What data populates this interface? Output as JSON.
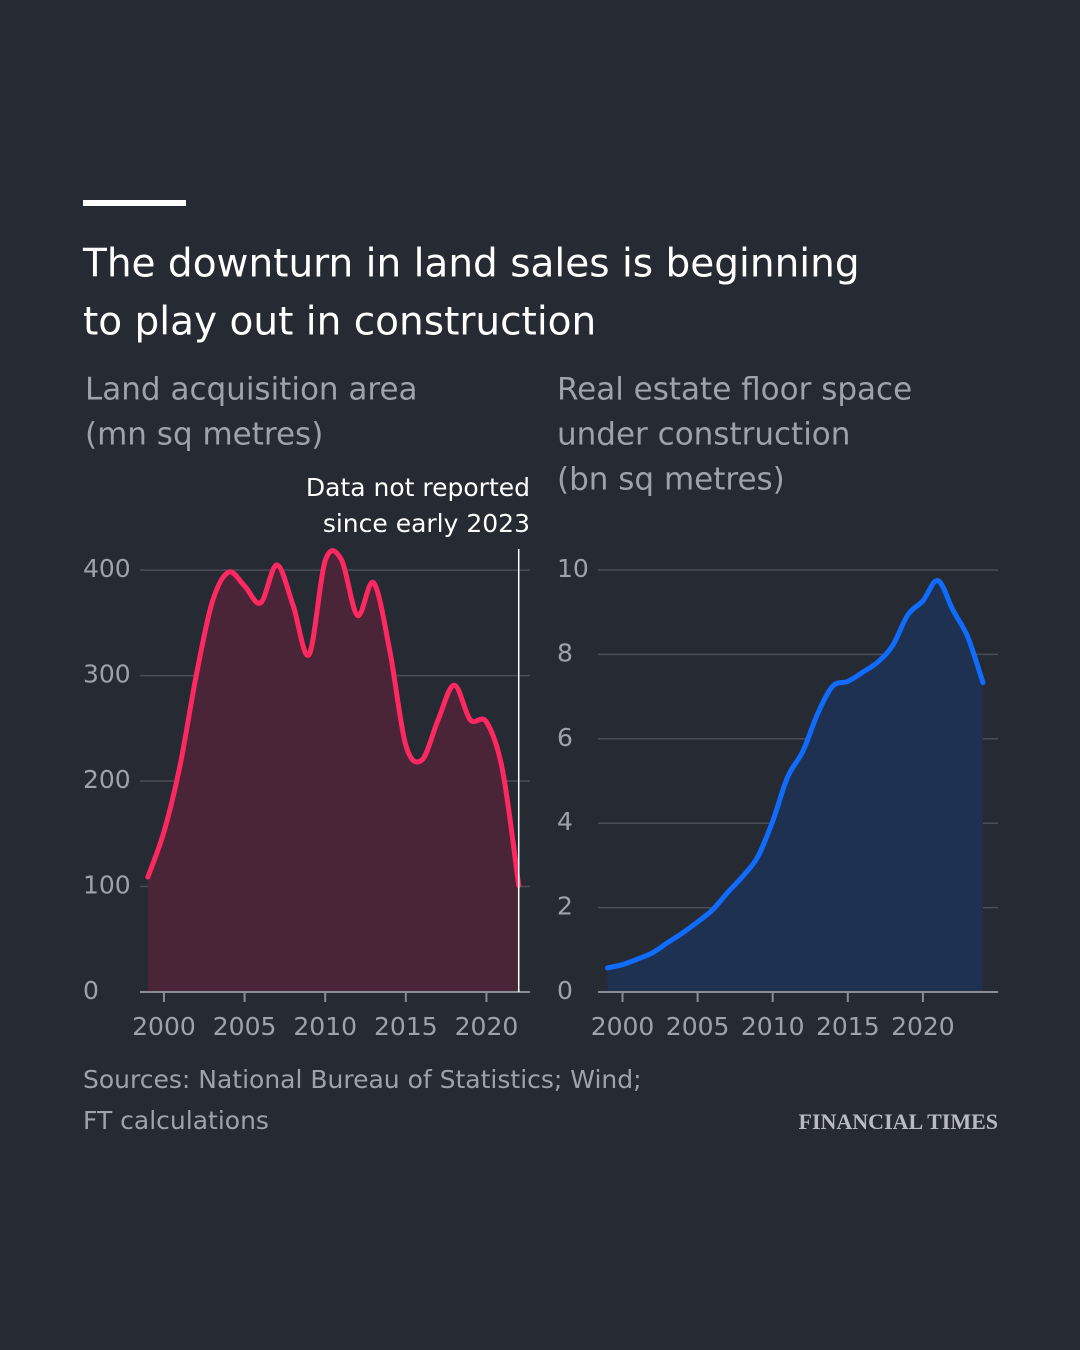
{
  "title": [
    "The downturn in land sales is beginning",
    "to play out in construction"
  ],
  "chart_data": [
    {
      "type": "line",
      "area": true,
      "subtitle": [
        "Land acquisition area",
        "(mn sq metres)"
      ],
      "x": [
        1999,
        2000,
        2001,
        2002,
        2003,
        2004,
        2005,
        2006,
        2007,
        2008,
        2009,
        2010,
        2011,
        2012,
        2013,
        2014,
        2015,
        2016,
        2017,
        2018,
        2019,
        2020,
        2021,
        2022
      ],
      "values": [
        109,
        152,
        215,
        300,
        370,
        398,
        385,
        369,
        405,
        367,
        320,
        409,
        410,
        357,
        388,
        324,
        234,
        220,
        258,
        291,
        258,
        256,
        210,
        101
      ],
      "color": "#ff2860",
      "fill": "#4a2538",
      "xlim": [
        1998.7,
        2022.7
      ],
      "ylim": [
        0,
        420
      ],
      "xticks": [
        2000,
        2005,
        2010,
        2015,
        2020
      ],
      "yticks": [
        0,
        100,
        200,
        300,
        400
      ],
      "grid": true,
      "annotation": {
        "text": [
          "Data not reported",
          "since early 2023"
        ],
        "x": 2022
      }
    },
    {
      "type": "line",
      "area": true,
      "subtitle": [
        "Real estate floor space",
        "under construction",
        "(bn sq metres)"
      ],
      "x": [
        1999,
        2000,
        2001,
        2002,
        2003,
        2004,
        2005,
        2006,
        2007,
        2008,
        2009,
        2010,
        2011,
        2012,
        2013,
        2014,
        2015,
        2016,
        2017,
        2018,
        2019,
        2020,
        2021,
        2022,
        2023,
        2024
      ],
      "values": [
        0.57,
        0.65,
        0.78,
        0.93,
        1.17,
        1.4,
        1.66,
        1.95,
        2.36,
        2.74,
        3.2,
        4.05,
        5.1,
        5.7,
        6.6,
        7.25,
        7.36,
        7.58,
        7.82,
        8.22,
        8.94,
        9.27,
        9.75,
        9.05,
        8.4,
        7.33
      ],
      "color": "#0f6cff",
      "fill": "#1f3150",
      "xlim": [
        1998.5,
        2025
      ],
      "ylim": [
        0,
        10
      ],
      "xticks": [
        2000,
        2005,
        2010,
        2015,
        2020
      ],
      "yticks": [
        0,
        2,
        4,
        6,
        8,
        10
      ],
      "grid": true
    }
  ],
  "source": [
    "Sources: National Bureau of Statistics; Wind;",
    "FT calculations"
  ],
  "brand": "FINANCIAL TIMES"
}
